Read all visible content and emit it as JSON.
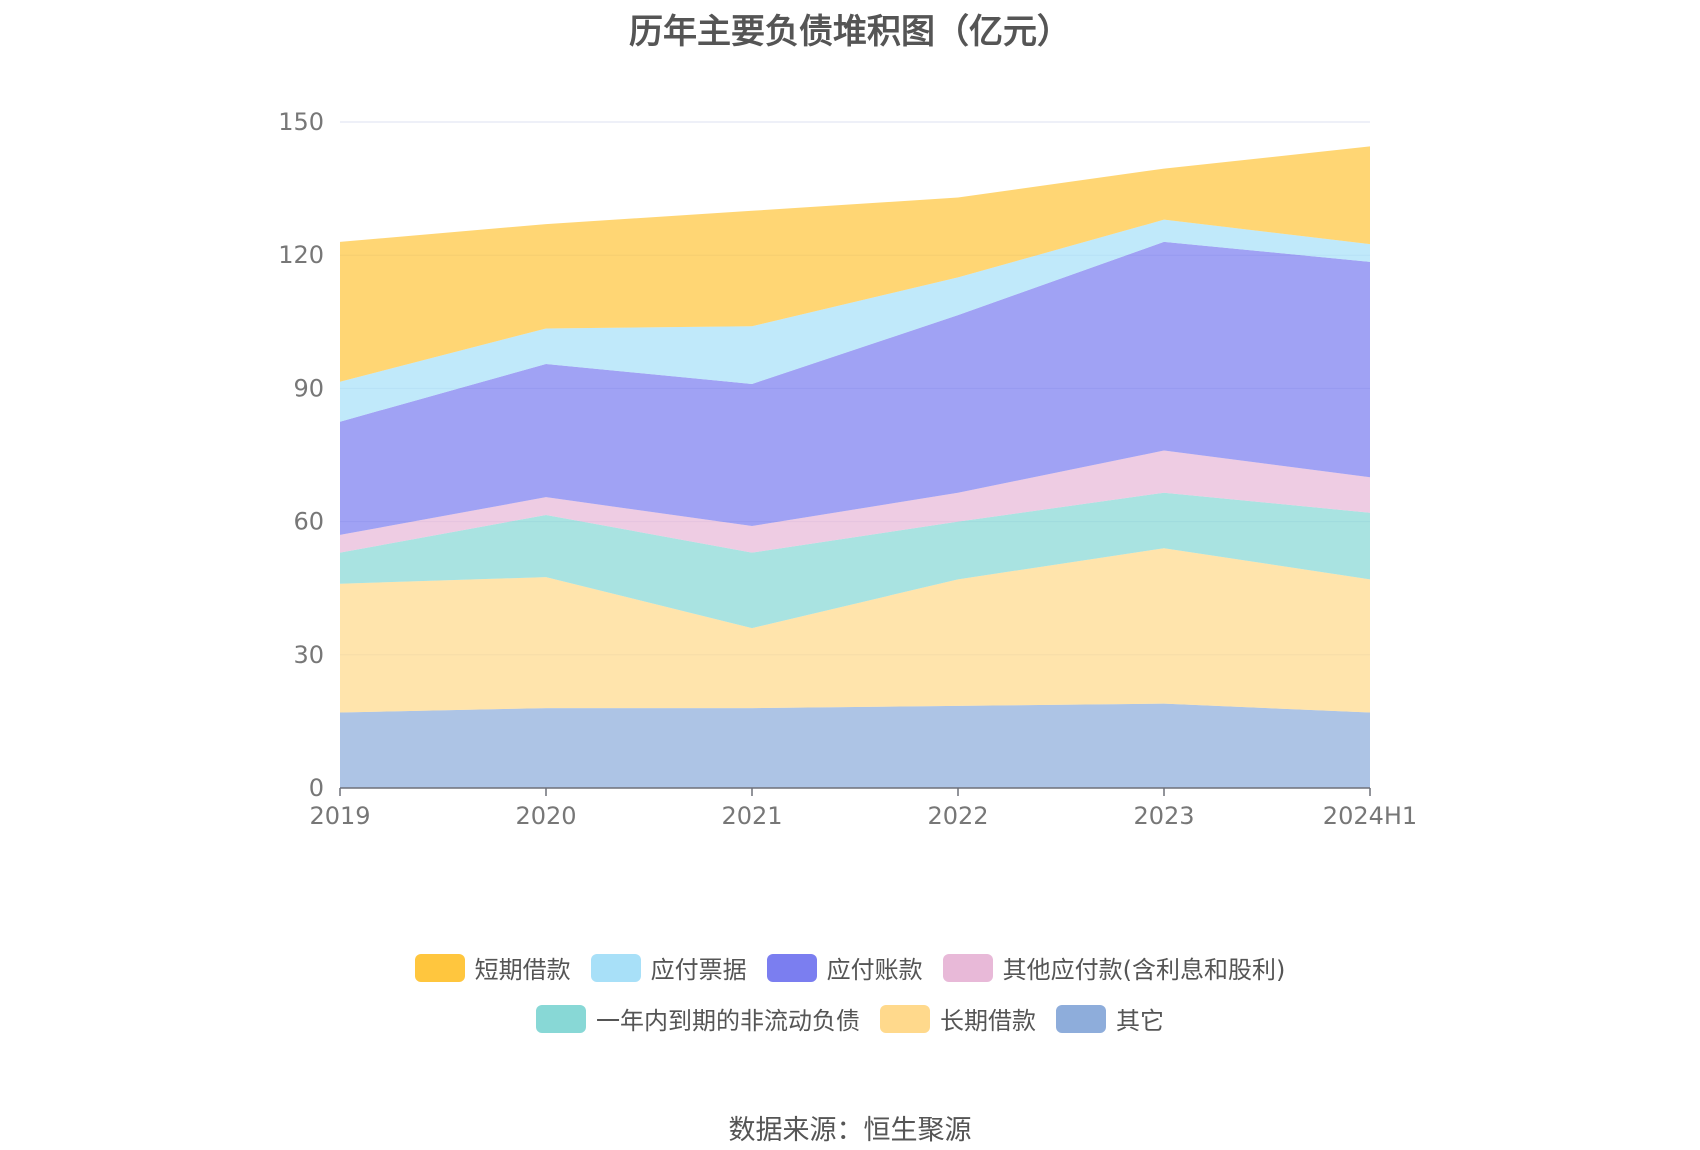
{
  "chart_data": {
    "type": "area",
    "title": "历年主要负债堆积图（亿元）",
    "categories": [
      "2019",
      "2020",
      "2021",
      "2022",
      "2023",
      "2024H1"
    ],
    "ylim": [
      0,
      150
    ],
    "yticks": [
      "0",
      "30",
      "60",
      "90",
      "120",
      "150"
    ],
    "grid": true,
    "legend_position": "bottom",
    "stacked": true,
    "series": [
      {
        "name": "其它",
        "color": "#8eaddb",
        "values": [
          17,
          18,
          18,
          18.5,
          19,
          17
        ]
      },
      {
        "name": "长期借款",
        "color": "#ffd98c",
        "values": [
          29,
          29.5,
          18,
          28.5,
          35,
          30
        ]
      },
      {
        "name": "一年内到期的非流动负债",
        "color": "#88d8d6",
        "values": [
          7,
          14,
          17,
          13,
          12.5,
          15
        ]
      },
      {
        "name": "其他应付款(含利息和股利)",
        "color": "#e8b9d8",
        "values": [
          4,
          4,
          6,
          6.5,
          9.5,
          8
        ]
      },
      {
        "name": "应付账款",
        "color": "#7b7ef0",
        "values": [
          25.5,
          30,
          32,
          40,
          47,
          48.5
        ]
      },
      {
        "name": "应付票据",
        "color": "#a8e0f8",
        "values": [
          9,
          8,
          13,
          8.5,
          5,
          4
        ]
      },
      {
        "name": "短期借款",
        "color": "#ffc63e",
        "values": [
          31.5,
          23.5,
          26,
          18,
          11.5,
          22
        ]
      }
    ]
  },
  "legend_rows": [
    [
      {
        "label": "短期借款",
        "color": "#ffc63e"
      },
      {
        "label": "应付票据",
        "color": "#a8e0f8"
      },
      {
        "label": "应付账款",
        "color": "#7b7ef0"
      },
      {
        "label": "其他应付款(含利息和股利)",
        "color": "#e8b9d8"
      }
    ],
    [
      {
        "label": "一年内到期的非流动负债",
        "color": "#88d8d6"
      },
      {
        "label": "长期借款",
        "color": "#ffd98c"
      },
      {
        "label": "其它",
        "color": "#8eaddb"
      }
    ]
  ],
  "source": "数据来源：恒生聚源"
}
